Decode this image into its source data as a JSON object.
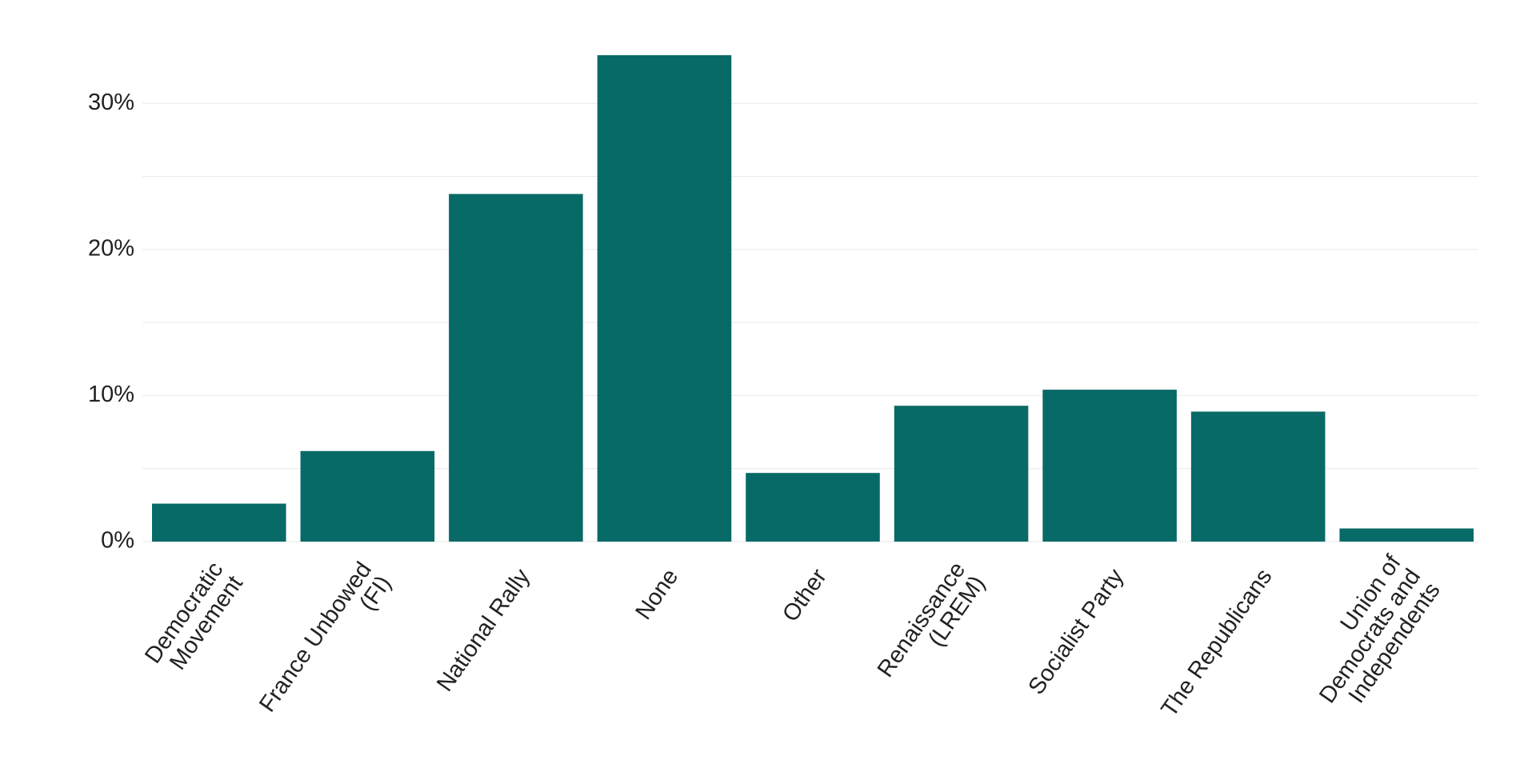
{
  "chart_data": {
    "type": "bar",
    "categories": [
      [
        "Democratic",
        "Movement"
      ],
      [
        "France Unbowed",
        "(FI)"
      ],
      [
        "National Rally"
      ],
      [
        "None"
      ],
      [
        "Other"
      ],
      [
        "Renaissance",
        "(LREM)"
      ],
      [
        "Socialist Party"
      ],
      [
        "The Republicans"
      ],
      [
        "Union of",
        "Democrats and",
        "Independents"
      ]
    ],
    "values": [
      2.6,
      6.2,
      23.8,
      33.3,
      4.7,
      9.3,
      10.4,
      8.9,
      0.9
    ],
    "ylim": [
      0,
      33.3
    ],
    "yticks": [
      0,
      10,
      20,
      30
    ],
    "ytick_labels": [
      "0%",
      "10%",
      "20%",
      "30%"
    ],
    "grid": true,
    "minor_grid": [
      5,
      15,
      25
    ],
    "colors": {
      "bar": "#086A66",
      "grid": "#E9E9E9",
      "text": "#222222"
    }
  }
}
